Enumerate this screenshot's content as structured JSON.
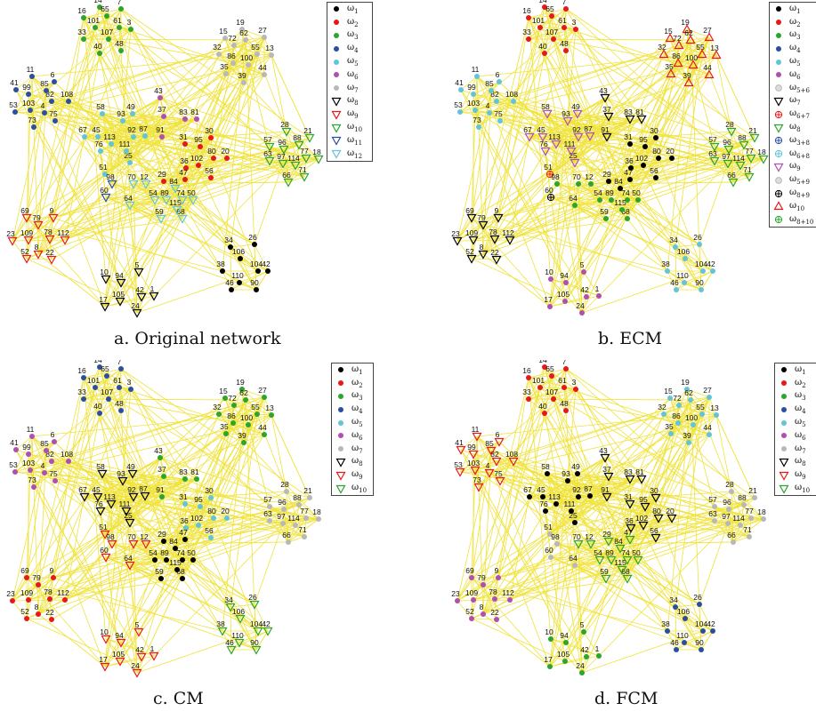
{
  "panels": [
    {
      "id": "a",
      "caption": "a. Original network",
      "legend": [
        {
          "sym": "dot",
          "color": "#000000",
          "base": "ω",
          "sub": "1"
        },
        {
          "sym": "dot",
          "color": "#e8181a",
          "base": "ω",
          "sub": "2"
        },
        {
          "sym": "dot",
          "color": "#2ba52b",
          "base": "ω",
          "sub": "3"
        },
        {
          "sym": "dot",
          "color": "#2b4fa0",
          "base": "ω",
          "sub": "4"
        },
        {
          "sym": "dot",
          "color": "#62c4d8",
          "base": "ω",
          "sub": "5"
        },
        {
          "sym": "dot",
          "color": "#b04fb0",
          "base": "ω",
          "sub": "6"
        },
        {
          "sym": "dot",
          "color": "#b8b8b8",
          "base": "ω",
          "sub": "7"
        },
        {
          "sym": "tri",
          "color": "#000000",
          "base": "ω",
          "sub": "8"
        },
        {
          "sym": "tri",
          "color": "#e8181a",
          "base": "ω",
          "sub": "9"
        },
        {
          "sym": "tri",
          "color": "#2ba52b",
          "base": "ω",
          "sub": "10"
        },
        {
          "sym": "tri",
          "color": "#2b4fa0",
          "base": "ω",
          "sub": "11"
        },
        {
          "sym": "tri",
          "color": "#62c4d8",
          "base": "ω",
          "sub": "12"
        }
      ]
    },
    {
      "id": "b",
      "caption": "b. ECM",
      "legend": [
        {
          "sym": "dot",
          "color": "#000000",
          "base": "ω",
          "sub": "1"
        },
        {
          "sym": "dot",
          "color": "#e8181a",
          "base": "ω",
          "sub": "2"
        },
        {
          "sym": "dot",
          "color": "#2ba52b",
          "base": "ω",
          "sub": "3"
        },
        {
          "sym": "dot",
          "color": "#2b4fa0",
          "base": "ω",
          "sub": "4"
        },
        {
          "sym": "dot",
          "color": "#62c4d8",
          "base": "ω",
          "sub": "5"
        },
        {
          "sym": "dot",
          "color": "#b04fb0",
          "base": "ω",
          "sub": "6"
        },
        {
          "sym": "ring",
          "color": "#b8b8b8",
          "base": "ω",
          "sub": "5+6"
        },
        {
          "sym": "tri",
          "color": "#000000",
          "base": "ω",
          "sub": "7"
        },
        {
          "sym": "cross",
          "color": "#e8181a",
          "base": "ω",
          "sub": "6+7"
        },
        {
          "sym": "tri",
          "color": "#2ba52b",
          "base": "ω",
          "sub": "8"
        },
        {
          "sym": "cross",
          "color": "#2b4fa0",
          "base": "ω",
          "sub": "3+8"
        },
        {
          "sym": "cross",
          "color": "#62c4d8",
          "base": "ω",
          "sub": "6+8"
        },
        {
          "sym": "tri",
          "color": "#b04fb0",
          "base": "ω",
          "sub": "9"
        },
        {
          "sym": "ring",
          "color": "#b8b8b8",
          "base": "ω",
          "sub": "5+9"
        },
        {
          "sym": "cross",
          "color": "#000000",
          "base": "ω",
          "sub": "8+9"
        },
        {
          "sym": "tri-up",
          "color": "#e8181a",
          "base": "ω",
          "sub": "10"
        },
        {
          "sym": "cross",
          "color": "#2ba52b",
          "base": "ω",
          "sub": "8+10"
        }
      ]
    },
    {
      "id": "c",
      "caption": "c. CM",
      "legend": [
        {
          "sym": "dot",
          "color": "#000000",
          "base": "ω",
          "sub": "1"
        },
        {
          "sym": "dot",
          "color": "#e8181a",
          "base": "ω",
          "sub": "2"
        },
        {
          "sym": "dot",
          "color": "#2ba52b",
          "base": "ω",
          "sub": "3"
        },
        {
          "sym": "dot",
          "color": "#2b4fa0",
          "base": "ω",
          "sub": "4"
        },
        {
          "sym": "dot",
          "color": "#62c4d8",
          "base": "ω",
          "sub": "5"
        },
        {
          "sym": "dot",
          "color": "#b04fb0",
          "base": "ω",
          "sub": "6"
        },
        {
          "sym": "dot",
          "color": "#b8b8b8",
          "base": "ω",
          "sub": "7"
        },
        {
          "sym": "tri",
          "color": "#000000",
          "base": "ω",
          "sub": "8"
        },
        {
          "sym": "tri",
          "color": "#e8181a",
          "base": "ω",
          "sub": "9"
        },
        {
          "sym": "tri",
          "color": "#2ba52b",
          "base": "ω",
          "sub": "10"
        }
      ]
    },
    {
      "id": "d",
      "caption": "d. FCM",
      "legend": [
        {
          "sym": "dot",
          "color": "#000000",
          "base": "ω",
          "sub": "1"
        },
        {
          "sym": "dot",
          "color": "#e8181a",
          "base": "ω",
          "sub": "2"
        },
        {
          "sym": "dot",
          "color": "#2ba52b",
          "base": "ω",
          "sub": "3"
        },
        {
          "sym": "dot",
          "color": "#2b4fa0",
          "base": "ω",
          "sub": "4"
        },
        {
          "sym": "dot",
          "color": "#62c4d8",
          "base": "ω",
          "sub": "5"
        },
        {
          "sym": "dot",
          "color": "#b04fb0",
          "base": "ω",
          "sub": "6"
        },
        {
          "sym": "dot",
          "color": "#b8b8b8",
          "base": "ω",
          "sub": "7"
        },
        {
          "sym": "tri",
          "color": "#000000",
          "base": "ω",
          "sub": "8"
        },
        {
          "sym": "tri",
          "color": "#e8181a",
          "base": "ω",
          "sub": "9"
        },
        {
          "sym": "tri",
          "color": "#2ba52b",
          "base": "ω",
          "sub": "10"
        }
      ]
    }
  ],
  "edge_color": "#f0e33a",
  "colors": {
    "black": "#000000",
    "red": "#e8181a",
    "green": "#2ba52b",
    "blue": "#2b4fa0",
    "cyan": "#62c4d8",
    "purple": "#b04fb0",
    "gray": "#b8b8b8"
  },
  "nodes": [
    {
      "id": "1"
    },
    {
      "id": "5"
    },
    {
      "id": "6"
    },
    {
      "id": "7"
    },
    {
      "id": "8"
    },
    {
      "id": "9"
    },
    {
      "id": "10"
    },
    {
      "id": "11"
    },
    {
      "id": "12"
    },
    {
      "id": "13"
    },
    {
      "id": "14"
    },
    {
      "id": "15"
    },
    {
      "id": "16"
    },
    {
      "id": "17"
    },
    {
      "id": "18"
    },
    {
      "id": "19"
    },
    {
      "id": "20"
    },
    {
      "id": "21"
    },
    {
      "id": "22"
    },
    {
      "id": "23"
    },
    {
      "id": "24"
    },
    {
      "id": "25"
    },
    {
      "id": "26"
    },
    {
      "id": "27"
    },
    {
      "id": "28"
    },
    {
      "id": "29"
    },
    {
      "id": "30"
    },
    {
      "id": "31"
    },
    {
      "id": "32"
    },
    {
      "id": "33"
    },
    {
      "id": "34"
    },
    {
      "id": "35"
    },
    {
      "id": "36"
    },
    {
      "id": "37"
    },
    {
      "id": "38"
    },
    {
      "id": "39"
    },
    {
      "id": "40"
    },
    {
      "id": "41"
    },
    {
      "id": "42"
    },
    {
      "id": "43"
    },
    {
      "id": "44"
    },
    {
      "id": "45"
    },
    {
      "id": "46"
    },
    {
      "id": "47"
    },
    {
      "id": "48"
    },
    {
      "id": "49"
    },
    {
      "id": "50"
    },
    {
      "id": "51"
    },
    {
      "id": "52"
    },
    {
      "id": "53"
    },
    {
      "id": "54"
    },
    {
      "id": "55"
    },
    {
      "id": "56"
    },
    {
      "id": "57"
    },
    {
      "id": "58"
    },
    {
      "id": "59"
    },
    {
      "id": "60"
    },
    {
      "id": "61"
    },
    {
      "id": "62"
    },
    {
      "id": "63"
    },
    {
      "id": "64"
    },
    {
      "id": "65"
    },
    {
      "id": "66"
    },
    {
      "id": "67"
    },
    {
      "id": "68"
    },
    {
      "id": "69"
    },
    {
      "id": "70"
    },
    {
      "id": "71"
    },
    {
      "id": "72"
    },
    {
      "id": "73"
    },
    {
      "id": "74"
    },
    {
      "id": "75"
    },
    {
      "id": "76"
    },
    {
      "id": "77"
    },
    {
      "id": "78"
    },
    {
      "id": "79"
    },
    {
      "id": "80"
    },
    {
      "id": "81"
    },
    {
      "id": "82"
    },
    {
      "id": "83"
    },
    {
      "id": "84"
    },
    {
      "id": "85"
    },
    {
      "id": "86"
    },
    {
      "id": "87"
    },
    {
      "id": "88"
    },
    {
      "id": "89"
    },
    {
      "id": "90"
    },
    {
      "id": "91"
    },
    {
      "id": "92"
    },
    {
      "id": "93"
    },
    {
      "id": "94"
    },
    {
      "id": "95"
    },
    {
      "id": "96"
    },
    {
      "id": "97"
    },
    {
      "id": "98"
    },
    {
      "id": "99"
    },
    {
      "id": "100"
    },
    {
      "id": "101"
    },
    {
      "id": "102"
    },
    {
      "id": "103"
    },
    {
      "id": "104"
    },
    {
      "id": "105"
    },
    {
      "id": "106"
    },
    {
      "id": "107"
    },
    {
      "id": "108"
    },
    {
      "id": "109"
    },
    {
      "id": "110"
    },
    {
      "id": "111"
    },
    {
      "id": "112"
    },
    {
      "id": "113"
    },
    {
      "id": "114"
    },
    {
      "id": "115"
    },
    {
      "id": "2"
    },
    {
      "id": "3"
    },
    {
      "id": "4"
    }
  ]
}
